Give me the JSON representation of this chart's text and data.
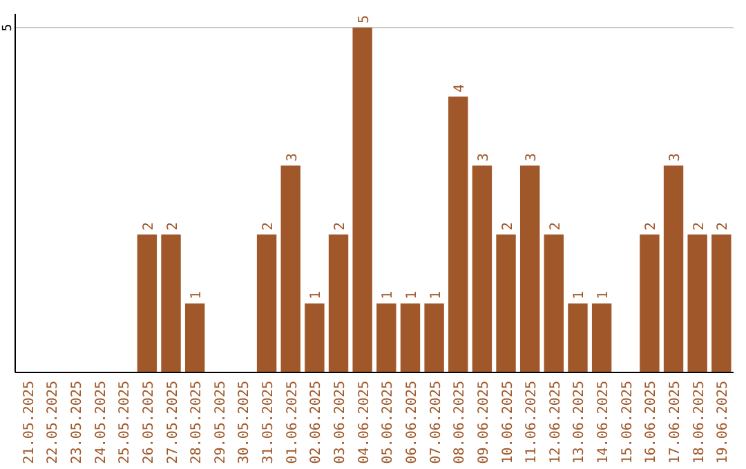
{
  "chart_data": {
    "type": "bar",
    "categories": [
      "21.05.2025",
      "22.05.2025",
      "23.05.2025",
      "24.05.2025",
      "25.05.2025",
      "26.05.2025",
      "27.05.2025",
      "28.05.2025",
      "29.05.2025",
      "30.05.2025",
      "31.05.2025",
      "01.06.2025",
      "02.06.2025",
      "03.06.2025",
      "04.06.2025",
      "05.06.2025",
      "06.06.2025",
      "07.06.2025",
      "08.06.2025",
      "09.06.2025",
      "10.06.2025",
      "11.06.2025",
      "12.06.2025",
      "13.06.2025",
      "14.06.2025",
      "15.06.2025",
      "16.06.2025",
      "17.06.2025",
      "18.06.2025",
      "19.06.2025"
    ],
    "values": [
      0,
      0,
      0,
      0,
      0,
      2,
      2,
      1,
      0,
      0,
      2,
      3,
      1,
      2,
      5,
      1,
      1,
      1,
      4,
      3,
      2,
      3,
      2,
      1,
      1,
      0,
      2,
      3,
      2,
      2
    ],
    "value_labels": [
      null,
      null,
      null,
      null,
      null,
      "2",
      "2",
      "1",
      null,
      null,
      "2",
      "3",
      "1",
      "2",
      "5",
      "1",
      "1",
      "1",
      "4",
      "3",
      "2",
      "3",
      "2",
      "1",
      "1",
      null,
      "2",
      "3",
      "2",
      "2"
    ],
    "color": "#a0582a",
    "ylim": [
      0,
      5.2
    ],
    "yticks": [
      5
    ],
    "grid": "y"
  }
}
